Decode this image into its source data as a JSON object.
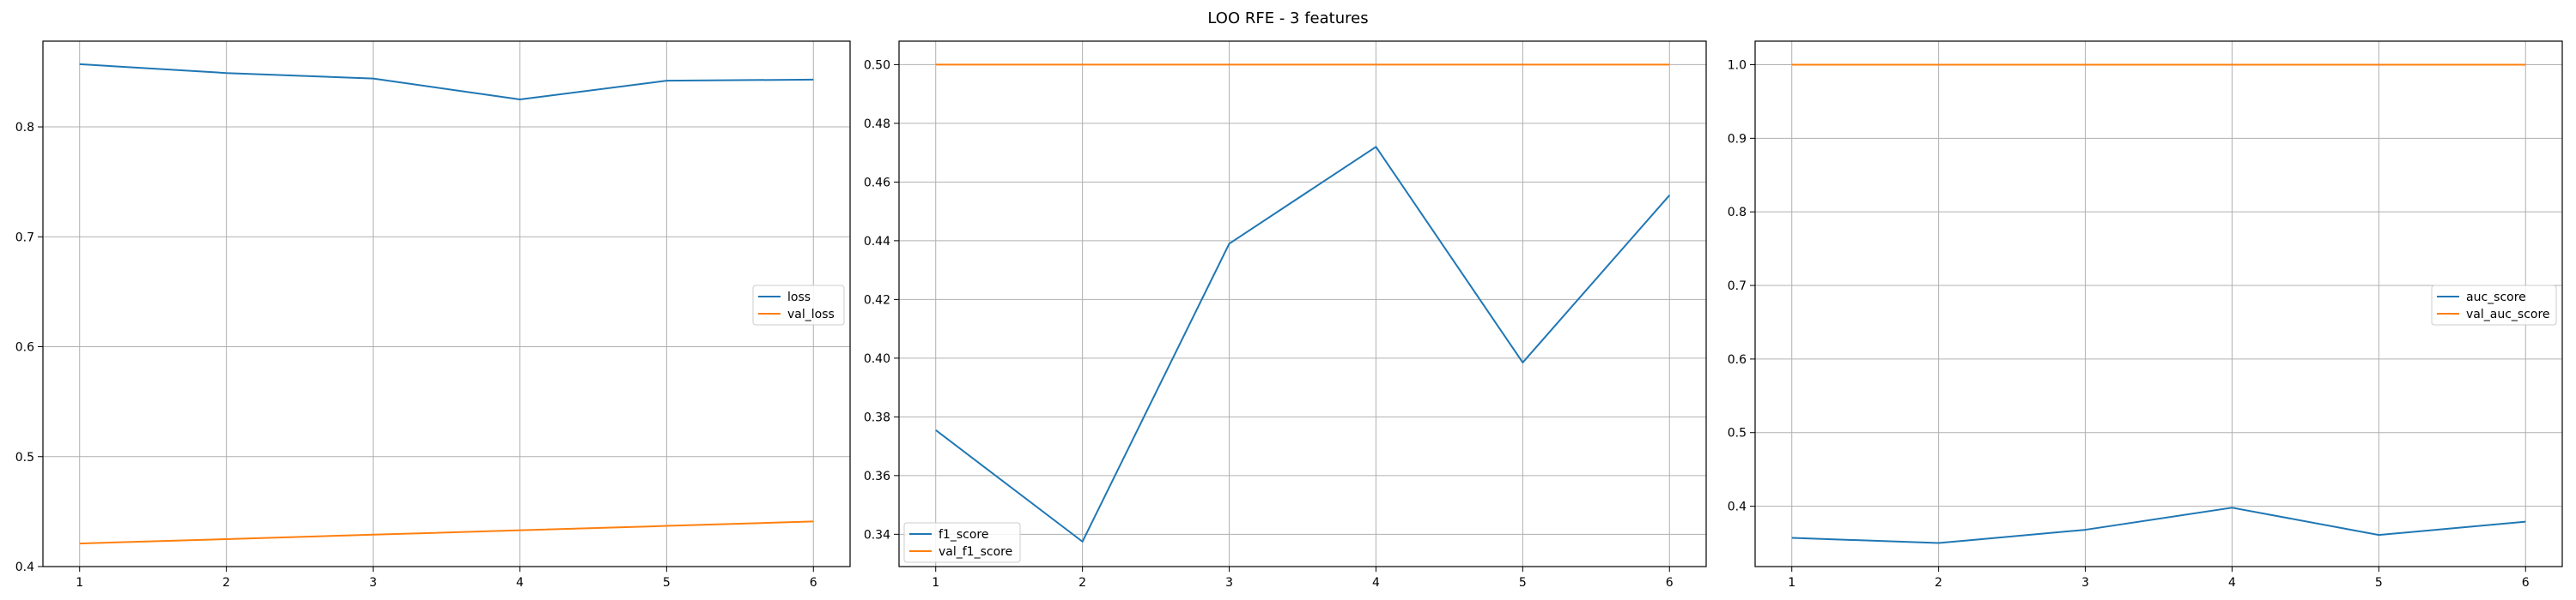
{
  "figure": {
    "suptitle": "LOO RFE - 3 features"
  },
  "chart_data": [
    {
      "type": "line",
      "x": [
        1,
        2,
        3,
        4,
        5,
        6
      ],
      "series": [
        {
          "name": "loss",
          "color": "#1f77b4",
          "values": [
            0.857,
            0.849,
            0.844,
            0.825,
            0.842,
            0.843
          ]
        },
        {
          "name": "val_loss",
          "color": "#ff7f0e",
          "values": [
            0.421,
            0.425,
            0.429,
            0.433,
            0.437,
            0.441
          ]
        }
      ],
      "xticks": [
        "1",
        "2",
        "3",
        "4",
        "5",
        "6"
      ],
      "yticks": [
        "0.4",
        "0.5",
        "0.6",
        "0.7",
        "0.8"
      ],
      "ytick_values": [
        0.4,
        0.5,
        0.6,
        0.7,
        0.8
      ],
      "xlim": [
        0.75,
        6.25
      ],
      "ylim": [
        0.4,
        0.878
      ],
      "grid": true,
      "legend_position": "center-right"
    },
    {
      "type": "line",
      "x": [
        1,
        2,
        3,
        4,
        5,
        6
      ],
      "series": [
        {
          "name": "f1_score",
          "color": "#1f77b4",
          "values": [
            0.3755,
            0.3375,
            0.439,
            0.472,
            0.3985,
            0.4555
          ]
        },
        {
          "name": "val_f1_score",
          "color": "#ff7f0e",
          "values": [
            0.5,
            0.5,
            0.5,
            0.5,
            0.5,
            0.5
          ]
        }
      ],
      "xticks": [
        "1",
        "2",
        "3",
        "4",
        "5",
        "6"
      ],
      "yticks": [
        "0.34",
        "0.36",
        "0.38",
        "0.40",
        "0.42",
        "0.44",
        "0.46",
        "0.48",
        "0.50"
      ],
      "ytick_values": [
        0.34,
        0.36,
        0.38,
        0.4,
        0.42,
        0.44,
        0.46,
        0.48,
        0.5
      ],
      "xlim": [
        0.75,
        6.25
      ],
      "ylim": [
        0.329,
        0.508
      ],
      "grid": true,
      "legend_position": "lower-left"
    },
    {
      "type": "line",
      "x": [
        1,
        2,
        3,
        4,
        5,
        6
      ],
      "series": [
        {
          "name": "auc_score",
          "color": "#1f77b4",
          "values": [
            0.357,
            0.35,
            0.368,
            0.398,
            0.361,
            0.379
          ]
        },
        {
          "name": "val_auc_score",
          "color": "#ff7f0e",
          "values": [
            1.0,
            1.0,
            1.0,
            1.0,
            1.0,
            1.0
          ]
        }
      ],
      "xticks": [
        "1",
        "2",
        "3",
        "4",
        "5",
        "6"
      ],
      "yticks": [
        "0.4",
        "0.5",
        "0.6",
        "0.7",
        "0.8",
        "0.9",
        "1.0"
      ],
      "ytick_values": [
        0.4,
        0.5,
        0.6,
        0.7,
        0.8,
        0.9,
        1.0
      ],
      "xlim": [
        0.75,
        6.25
      ],
      "ylim": [
        0.318,
        1.032
      ],
      "grid": true,
      "legend_position": "center-right"
    }
  ]
}
